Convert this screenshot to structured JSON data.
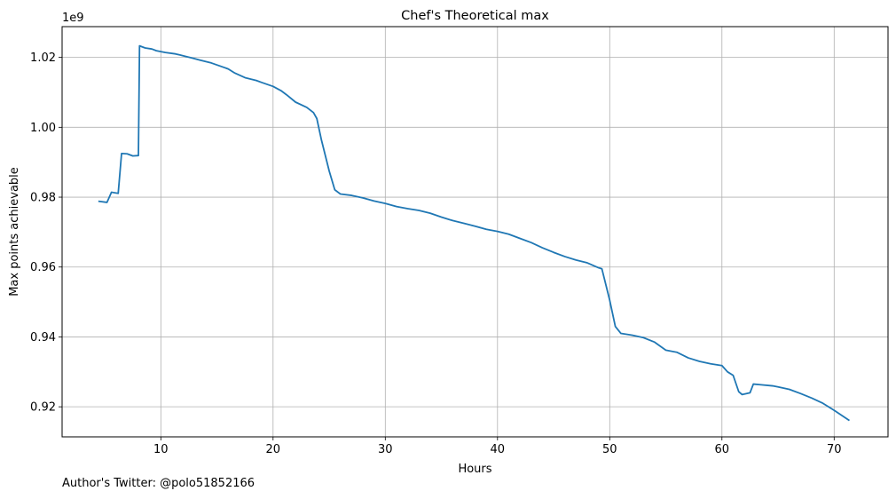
{
  "chart_data": {
    "type": "line",
    "title": "Chef's Theoretical max",
    "xlabel": "Hours",
    "ylabel": "Max points achievable",
    "y_offset_label": "1e9",
    "xlim": [
      1.2,
      74.8
    ],
    "ylim": [
      0.9114,
      1.0288
    ],
    "x_ticks": [
      10,
      20,
      30,
      40,
      50,
      60,
      70
    ],
    "x_tick_labels": [
      "10",
      "20",
      "30",
      "40",
      "50",
      "60",
      "70"
    ],
    "y_ticks": [
      0.92,
      0.94,
      0.96,
      0.98,
      1.0,
      1.02
    ],
    "y_tick_labels": [
      "0.92",
      "0.94",
      "0.96",
      "0.98",
      "1.00",
      "1.02"
    ],
    "grid": true,
    "line_color": "#1f77b4",
    "series": [
      {
        "x": [
          4.5,
          5.2,
          5.6,
          6.2,
          6.5,
          7.0,
          7.5,
          8.0,
          8.1,
          8.6,
          9.2,
          9.6,
          10.4,
          11.3,
          11.7,
          12.2,
          12.8,
          13.5,
          14.5,
          16.0,
          16.6,
          17.5,
          18.5,
          19.0,
          20.0,
          20.7,
          21.2,
          22.0,
          23.0,
          23.6,
          23.9,
          24.3,
          25.0,
          25.5,
          26.0,
          27.0,
          28.0,
          29.0,
          30.0,
          31.0,
          32.0,
          33.0,
          34.0,
          35.0,
          36.0,
          37.0,
          38.0,
          39.0,
          40.0,
          41.0,
          42.0,
          43.0,
          44.0,
          45.0,
          46.0,
          47.0,
          48.0,
          49.0,
          49.3,
          50.0,
          50.5,
          51.0,
          52.0,
          53.0,
          54.0,
          55.0,
          56.0,
          57.0,
          58.0,
          59.0,
          60.0,
          60.5,
          61.0,
          61.5,
          61.8,
          62.5,
          62.8,
          63.5,
          64.5,
          65.0,
          66.0,
          67.0,
          68.0,
          69.0,
          70.0,
          71.3
        ],
        "y": [
          0.9788,
          0.9785,
          0.9814,
          0.9811,
          0.9925,
          0.9924,
          0.9918,
          0.9919,
          1.0233,
          1.0227,
          1.0224,
          1.0219,
          1.0214,
          1.021,
          1.0207,
          1.0203,
          1.0198,
          1.0192,
          1.0184,
          1.0167,
          1.0155,
          1.0142,
          1.0134,
          1.0128,
          1.0117,
          1.0105,
          1.0093,
          1.0072,
          1.0057,
          1.0042,
          1.0025,
          0.9965,
          0.9875,
          0.9821,
          0.9809,
          0.9805,
          0.9798,
          0.9789,
          0.9782,
          0.9773,
          0.9767,
          0.9762,
          0.9754,
          0.9743,
          0.9733,
          0.9725,
          0.9717,
          0.9708,
          0.9702,
          0.9694,
          0.9682,
          0.967,
          0.9655,
          0.9642,
          0.963,
          0.962,
          0.9612,
          0.9598,
          0.9595,
          0.9505,
          0.943,
          0.941,
          0.9405,
          0.9398,
          0.9385,
          0.9362,
          0.9356,
          0.934,
          0.933,
          0.9323,
          0.9318,
          0.93,
          0.929,
          0.9243,
          0.9235,
          0.924,
          0.9265,
          0.9263,
          0.926,
          0.9257,
          0.925,
          0.9238,
          0.9225,
          0.921,
          0.919,
          0.9162
        ]
      }
    ]
  },
  "footer": {
    "author_caption": "Author's Twitter: @polo51852166"
  }
}
